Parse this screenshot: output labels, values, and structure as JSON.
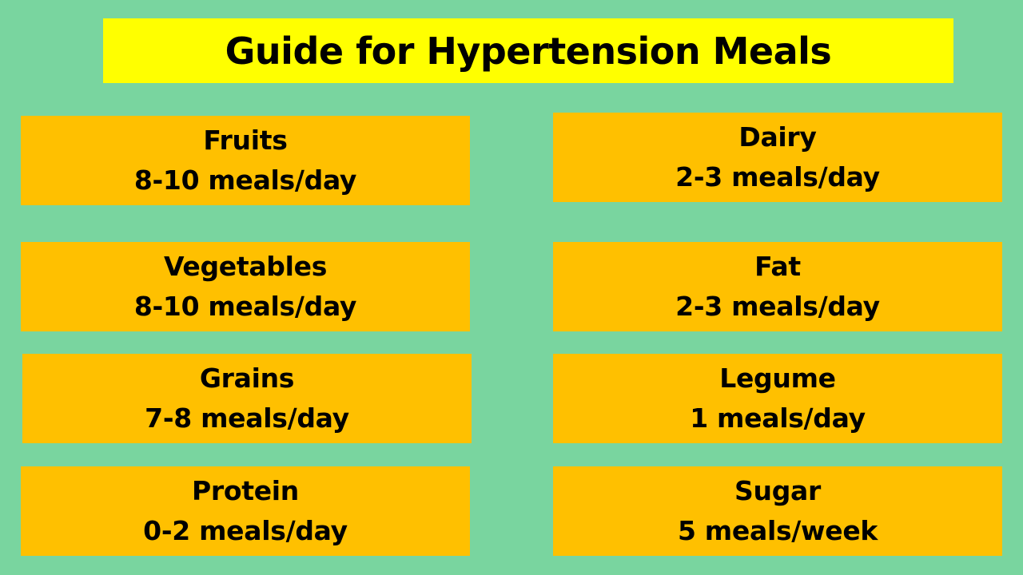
{
  "title": "Guide for Hypertension Meals",
  "colors": {
    "background": "#79d59f",
    "title_banner": "#ffff00",
    "card": "#ffc000",
    "text": "#000000"
  },
  "items": [
    {
      "name": "Fruits",
      "frequency": "8-10 meals/day"
    },
    {
      "name": "Dairy",
      "frequency": "2-3 meals/day"
    },
    {
      "name": "Vegetables",
      "frequency": "8-10 meals/day"
    },
    {
      "name": "Fat",
      "frequency": "2-3 meals/day"
    },
    {
      "name": "Grains",
      "frequency": "7-8 meals/day"
    },
    {
      "name": "Legume",
      "frequency": "1 meals/day"
    },
    {
      "name": "Protein",
      "frequency": "0-2 meals/day"
    },
    {
      "name": "Sugar",
      "frequency": "5 meals/week"
    }
  ]
}
